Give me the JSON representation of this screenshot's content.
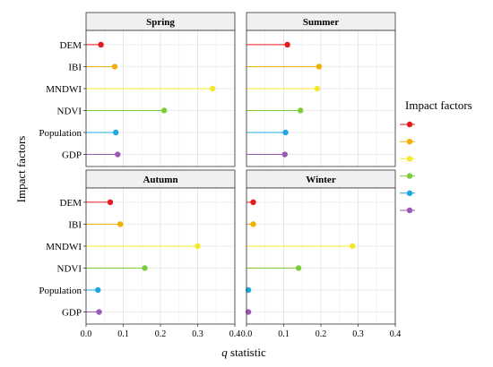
{
  "chart_data": {
    "type": "lollipop",
    "xlabel_italic": "q",
    "xlabel_rest": " statistic",
    "ylabel": "Impact factors",
    "xlim": [
      0.0,
      0.4
    ],
    "xticks": [
      "0.0",
      "0.1",
      "0.2",
      "0.3",
      "0.4"
    ],
    "grid": true,
    "legend_position": "right",
    "legend_title": "Impact factors",
    "categories": [
      "DEM",
      "IBI",
      "MNDWI",
      "NDVI",
      "Population",
      "GDP"
    ],
    "colors": [
      "#e41a1c",
      "#f0b000",
      "#f5e82a",
      "#7ccd3c",
      "#1fa8e0",
      "#9b59b6"
    ],
    "panels": [
      {
        "name": "Spring",
        "values": [
          0.04,
          0.077,
          0.34,
          0.21,
          0.08,
          0.085
        ]
      },
      {
        "name": "Summer",
        "values": [
          0.11,
          0.195,
          0.19,
          0.145,
          0.105,
          0.103
        ]
      },
      {
        "name": "Autumn",
        "values": [
          0.065,
          0.092,
          0.3,
          0.158,
          0.032,
          0.035
        ]
      },
      {
        "name": "Winter",
        "values": [
          0.018,
          0.018,
          0.285,
          0.14,
          0.005,
          0.005
        ]
      }
    ]
  }
}
